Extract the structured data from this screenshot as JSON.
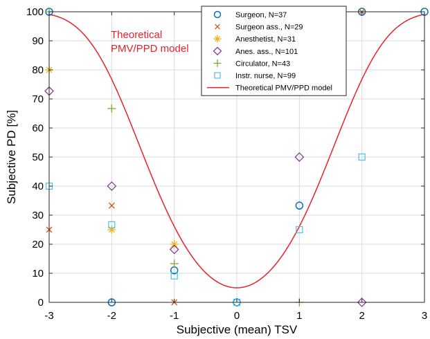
{
  "chart_data": {
    "type": "scatter",
    "xlabel": "Subjective (mean) TSV",
    "ylabel": "Subjective PD [%]",
    "xlim": [
      -3,
      3
    ],
    "ylim": [
      0,
      100
    ],
    "xticks": [
      -3,
      -2,
      -1,
      0,
      1,
      2,
      3
    ],
    "yticks": [
      0,
      10,
      20,
      30,
      40,
      50,
      60,
      70,
      80,
      90,
      100
    ],
    "grid": true,
    "legend_position": "top-right",
    "annotation": {
      "lines": [
        "Theoretical",
        "PMV/PPD model"
      ],
      "color": "#e8202a"
    },
    "series": [
      {
        "name": "Surgeon, N=37",
        "marker": "circle",
        "color": "#0072bd",
        "points": [
          [
            -3,
            100
          ],
          [
            -2,
            0
          ],
          [
            -1,
            11
          ],
          [
            0,
            0
          ],
          [
            1,
            33.3
          ],
          [
            2,
            100
          ],
          [
            3,
            100
          ]
        ]
      },
      {
        "name": "Surgeon ass., N=29",
        "marker": "x",
        "color": "#d95319",
        "points": [
          [
            -3,
            25
          ],
          [
            -2,
            33.3
          ],
          [
            -1,
            0
          ],
          [
            2,
            100
          ]
        ]
      },
      {
        "name": "Anesthetist, N=31",
        "marker": "star",
        "color": "#edb120",
        "points": [
          [
            -3,
            80
          ],
          [
            -2,
            25
          ],
          [
            -1,
            20
          ]
        ]
      },
      {
        "name": "Anes. ass., N=101",
        "marker": "diamond",
        "color": "#7e2f8e",
        "points": [
          [
            -3,
            72.7
          ],
          [
            -2,
            40
          ],
          [
            -1,
            18.2
          ],
          [
            1,
            50
          ],
          [
            2,
            0
          ]
        ]
      },
      {
        "name": "Circulator, N=43",
        "marker": "plus",
        "color": "#77ac30",
        "points": [
          [
            -3,
            100
          ],
          [
            -2,
            66.7
          ],
          [
            -1,
            13.3
          ],
          [
            1,
            0
          ]
        ]
      },
      {
        "name": "Instr. nurse, N=99",
        "marker": "square",
        "color": "#4dbeee",
        "points": [
          [
            -3,
            40
          ],
          [
            -2,
            26.7
          ],
          [
            -1,
            9.1
          ],
          [
            0,
            0
          ],
          [
            1,
            25
          ],
          [
            2,
            50
          ]
        ]
      }
    ],
    "model_curve": {
      "name": "Theoretical PMV/PPD model",
      "color": "#e8202a",
      "formula": "100 - 95*exp(-0.03353*x^4 - 0.2179*x^2)"
    }
  }
}
